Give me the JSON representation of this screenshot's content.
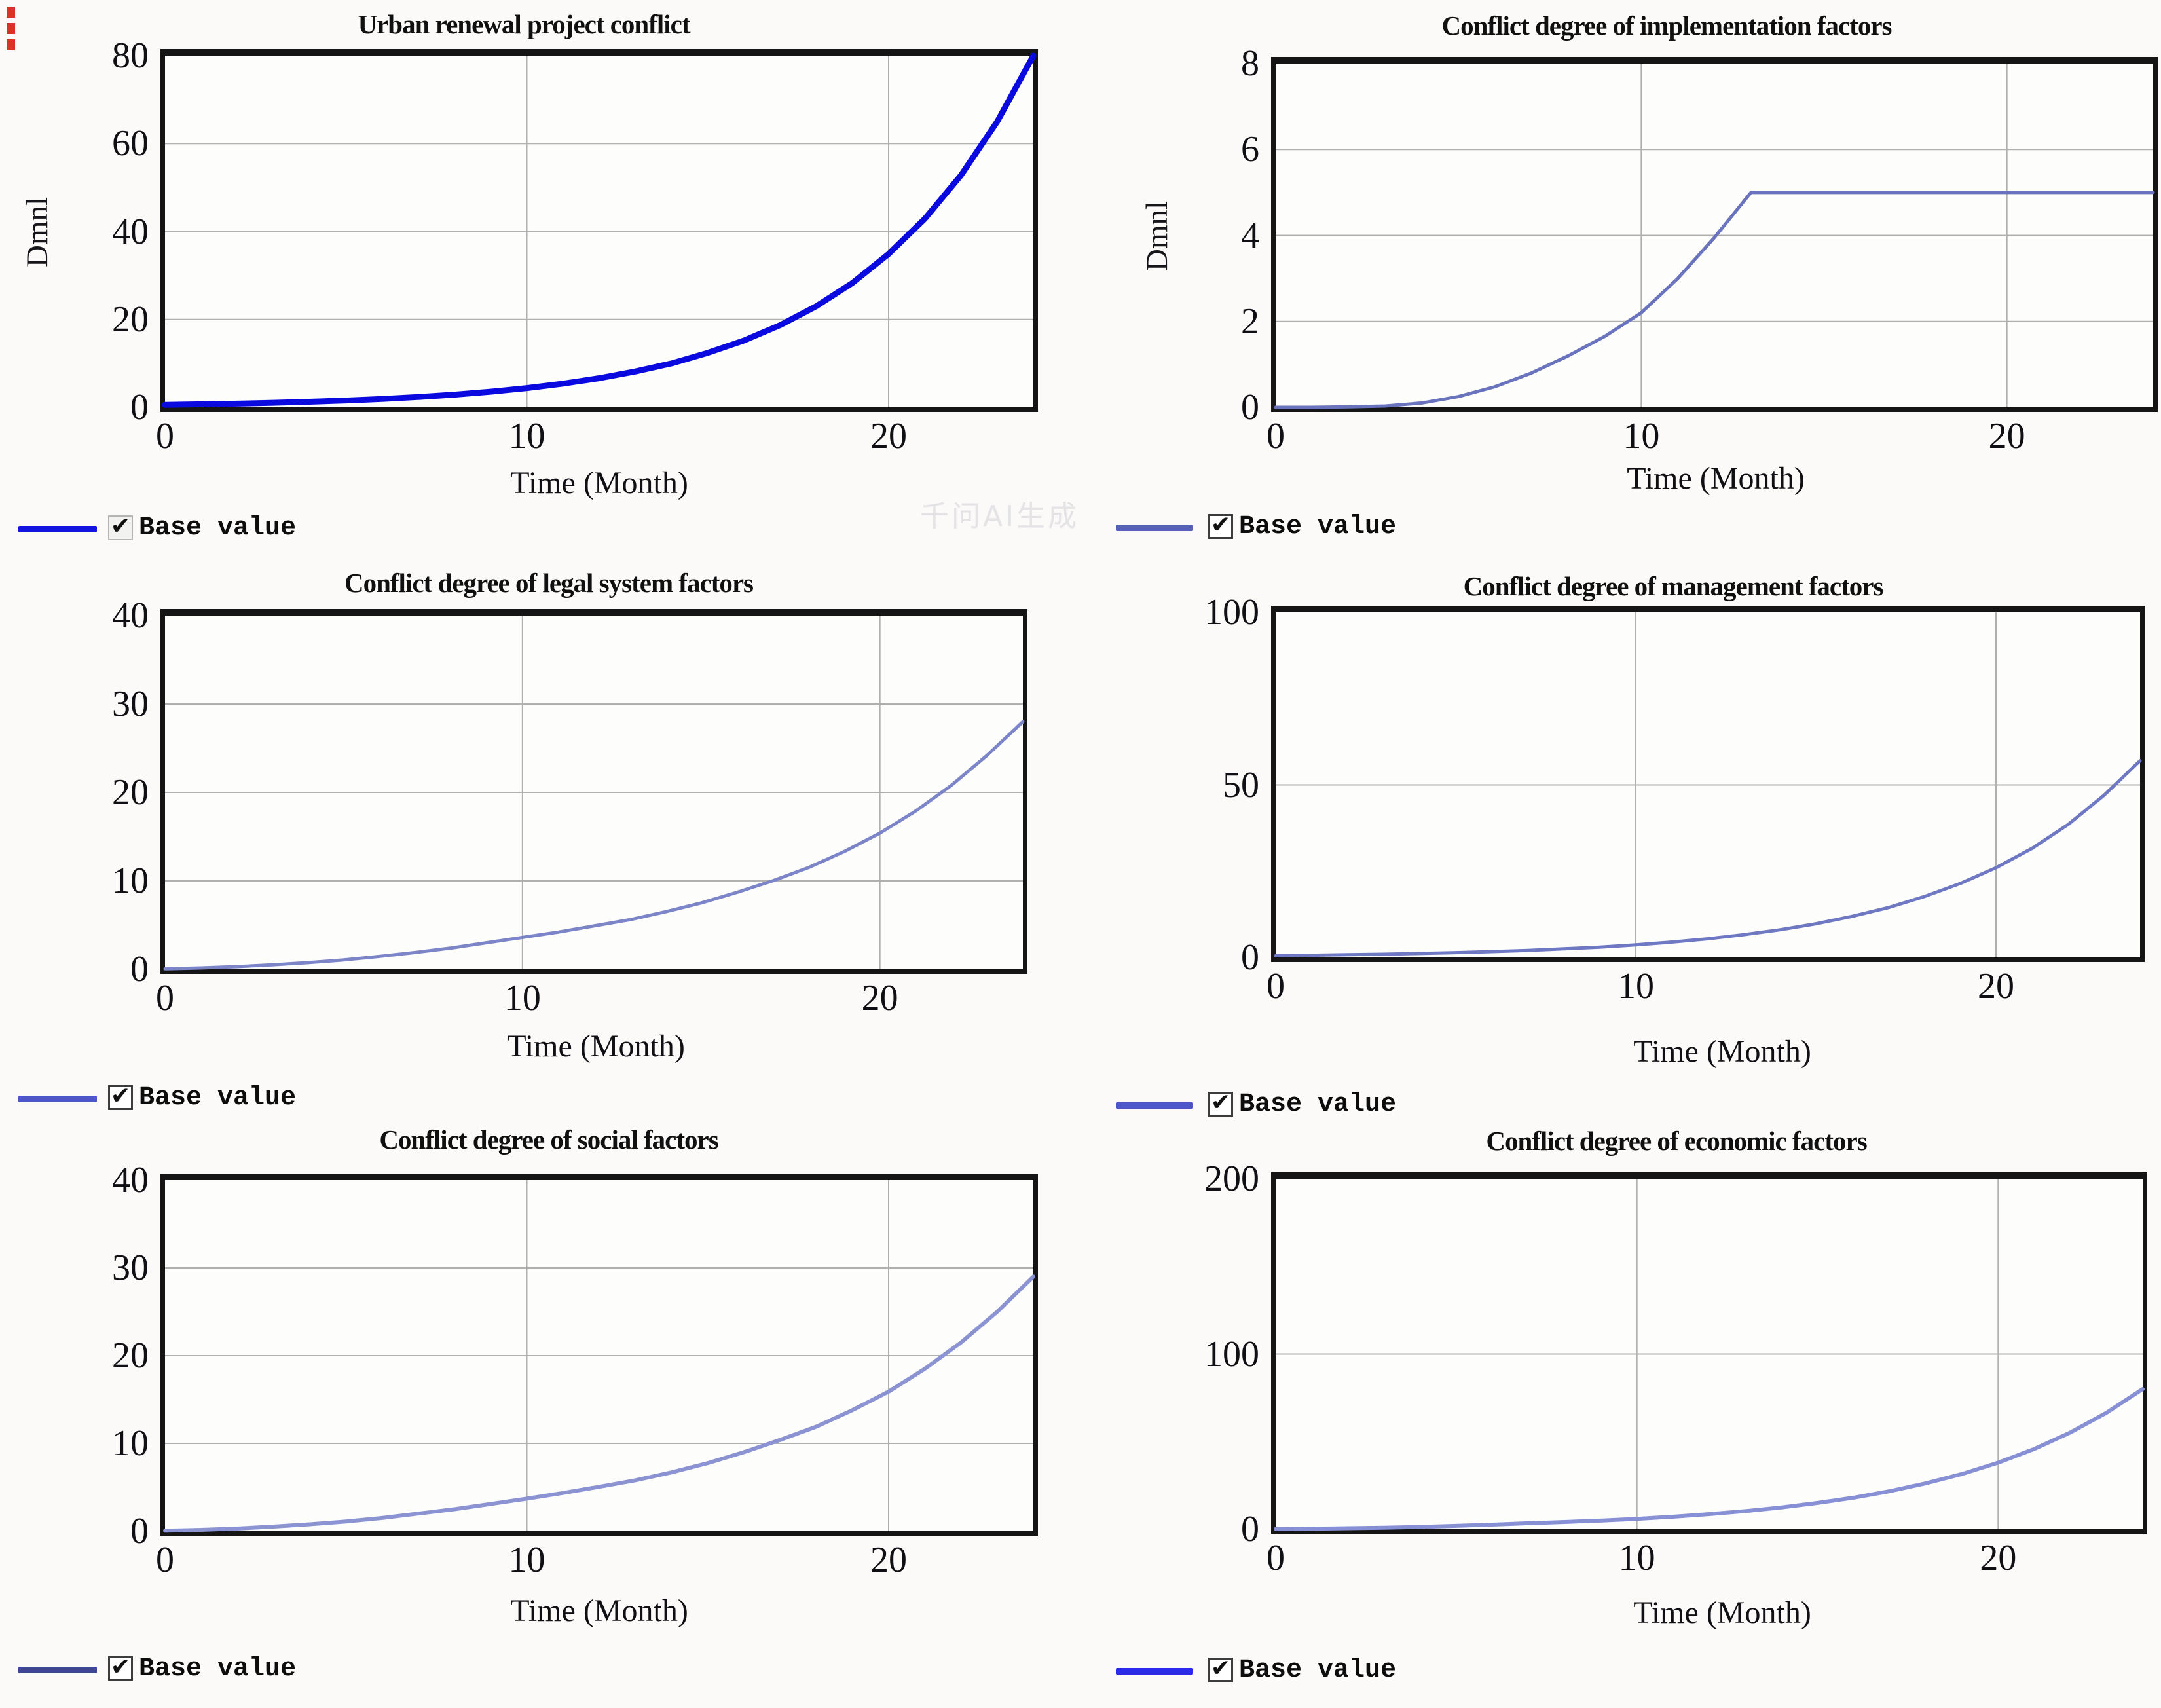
{
  "page": {
    "watermark": "千问AI生成",
    "red_marker_color": "#d93226",
    "grid_color": "#b0b0b0",
    "frame_color": "#151515"
  },
  "chart_data": [
    {
      "type": "line",
      "title": "Urban renewal project conflict",
      "xlabel": "Time (Month)",
      "ylabel": "Dmnl",
      "xlim": [
        0,
        24
      ],
      "ylim": [
        0,
        80
      ],
      "xticks": [
        0,
        10,
        20
      ],
      "yticks": [
        0,
        20,
        40,
        60,
        80
      ],
      "grid": true,
      "legend": [
        {
          "label": "Base value",
          "checked": true,
          "color": "#1414e0"
        }
      ],
      "series": [
        {
          "name": "Base value",
          "color": "#0a0ae0",
          "width": 9,
          "x": [
            0,
            1,
            2,
            3,
            4,
            5,
            6,
            7,
            8,
            9,
            10,
            11,
            12,
            13,
            14,
            15,
            16,
            17,
            18,
            19,
            20,
            21,
            22,
            23,
            24
          ],
          "y": [
            0.55,
            0.68,
            0.83,
            1.03,
            1.26,
            1.55,
            1.91,
            2.35,
            2.89,
            3.56,
            4.38,
            5.39,
            6.63,
            8.16,
            10.0,
            12.4,
            15.2,
            18.7,
            23.0,
            28.3,
            34.9,
            42.9,
            52.8,
            65.0,
            80
          ]
        }
      ]
    },
    {
      "type": "line",
      "title": "Conflict degree of implementation factors",
      "xlabel": "Time (Month)",
      "ylabel": "Dmnl",
      "xlim": [
        0,
        24
      ],
      "ylim": [
        0,
        8
      ],
      "xticks": [
        0,
        10,
        20
      ],
      "yticks": [
        0,
        2,
        4,
        6,
        8
      ],
      "grid": true,
      "legend": [
        {
          "label": "Base value",
          "checked": true,
          "color": "#5660b6"
        }
      ],
      "series": [
        {
          "name": "Base value",
          "color": "#6a73bd",
          "width": 5,
          "x": [
            0,
            1,
            2,
            3,
            4,
            5,
            6,
            7,
            8,
            9,
            10,
            11,
            12,
            13,
            14,
            15,
            16,
            17,
            18,
            19,
            20,
            21,
            22,
            23,
            24
          ],
          "y": [
            0,
            0,
            0.01,
            0.03,
            0.1,
            0.25,
            0.48,
            0.8,
            1.2,
            1.65,
            2.2,
            3.0,
            3.95,
            5,
            5,
            5,
            5,
            5,
            5,
            5,
            5,
            5,
            5,
            5,
            5
          ]
        }
      ]
    },
    {
      "type": "line",
      "title": "Conflict degree of legal system factors",
      "xlabel": "Time (Month)",
      "ylabel": "",
      "xlim": [
        0,
        24
      ],
      "ylim": [
        0,
        40
      ],
      "xticks": [
        0,
        10,
        20
      ],
      "yticks": [
        0,
        10,
        20,
        30,
        40
      ],
      "grid": true,
      "legend": [
        {
          "label": "Base value",
          "checked": true,
          "color": "#4d55c8"
        }
      ],
      "series": [
        {
          "name": "Base value",
          "color": "#7d85c9",
          "width": 5,
          "x": [
            0,
            1,
            2,
            3,
            4,
            5,
            6,
            7,
            8,
            9,
            10,
            11,
            12,
            13,
            14,
            15,
            16,
            17,
            18,
            19,
            20,
            21,
            22,
            23,
            24
          ],
          "y": [
            0.05,
            0.15,
            0.3,
            0.5,
            0.75,
            1.05,
            1.45,
            1.9,
            2.4,
            3.0,
            3.6,
            4.2,
            4.9,
            5.6,
            6.5,
            7.5,
            8.7,
            10,
            11.5,
            13.3,
            15.4,
            17.9,
            20.8,
            24.2,
            28
          ]
        }
      ]
    },
    {
      "type": "line",
      "title": "Conflict degree of management factors",
      "xlabel": "Time (Month)",
      "ylabel": "",
      "xlim": [
        0,
        24
      ],
      "ylim": [
        0,
        100
      ],
      "xticks": [
        0,
        10,
        20
      ],
      "yticks": [
        0,
        50,
        100
      ],
      "grid": true,
      "legend": [
        {
          "label": "Base value",
          "checked": true,
          "color": "#4d55c8"
        }
      ],
      "series": [
        {
          "name": "Base value",
          "color": "#6f78c3",
          "width": 5,
          "x": [
            0,
            1,
            2,
            3,
            4,
            5,
            6,
            7,
            8,
            9,
            10,
            11,
            12,
            13,
            14,
            15,
            16,
            17,
            18,
            19,
            20,
            21,
            22,
            23,
            24
          ],
          "y": [
            0.5,
            0.65,
            0.8,
            0.95,
            1.15,
            1.4,
            1.7,
            2.05,
            2.5,
            3.0,
            3.65,
            4.45,
            5.4,
            6.6,
            8.0,
            9.75,
            11.9,
            14.4,
            17.6,
            21.4,
            26,
            31.6,
            38.5,
            47,
            57
          ]
        }
      ]
    },
    {
      "type": "line",
      "title": "Conflict degree of social factors",
      "xlabel": "Time (Month)",
      "ylabel": "",
      "xlim": [
        0,
        24
      ],
      "ylim": [
        0,
        40
      ],
      "xticks": [
        0,
        10,
        20
      ],
      "yticks": [
        0,
        10,
        20,
        30,
        40
      ],
      "grid": true,
      "legend": [
        {
          "label": "Base value",
          "checked": true,
          "color": "#3e4595"
        }
      ],
      "series": [
        {
          "name": "Base value",
          "color": "#8b93d2",
          "width": 6,
          "x": [
            0,
            1,
            2,
            3,
            4,
            5,
            6,
            7,
            8,
            9,
            10,
            11,
            12,
            13,
            14,
            15,
            16,
            17,
            18,
            19,
            20,
            21,
            22,
            23,
            24
          ],
          "y": [
            0.05,
            0.15,
            0.3,
            0.52,
            0.78,
            1.1,
            1.5,
            2,
            2.5,
            3.1,
            3.7,
            4.35,
            5.05,
            5.8,
            6.7,
            7.75,
            9,
            10.4,
            11.9,
            13.8,
            15.9,
            18.5,
            21.5,
            25,
            29
          ]
        }
      ]
    },
    {
      "type": "line",
      "title": "Conflict degree of economic factors",
      "xlabel": "Time (Month)",
      "ylabel": "",
      "xlim": [
        0,
        24
      ],
      "ylim": [
        0,
        200
      ],
      "xticks": [
        0,
        10,
        20
      ],
      "yticks": [
        0,
        100,
        200
      ],
      "grid": true,
      "legend": [
        {
          "label": "Base value",
          "checked": true,
          "color": "#2a2ae8"
        }
      ],
      "series": [
        {
          "name": "Base value",
          "color": "#8790d5",
          "width": 6,
          "x": [
            0,
            1,
            2,
            3,
            4,
            5,
            6,
            7,
            8,
            9,
            10,
            11,
            12,
            13,
            14,
            15,
            16,
            17,
            18,
            19,
            20,
            21,
            22,
            23,
            24
          ],
          "y": [
            0.1,
            0.3,
            0.55,
            0.85,
            1.3,
            1.9,
            2.6,
            3.4,
            4.1,
            4.9,
            5.9,
            7.1,
            8.6,
            10.3,
            12.4,
            15,
            18,
            21.7,
            26.2,
            31.5,
            38,
            45.8,
            55.2,
            66.5,
            80
          ]
        }
      ]
    }
  ]
}
